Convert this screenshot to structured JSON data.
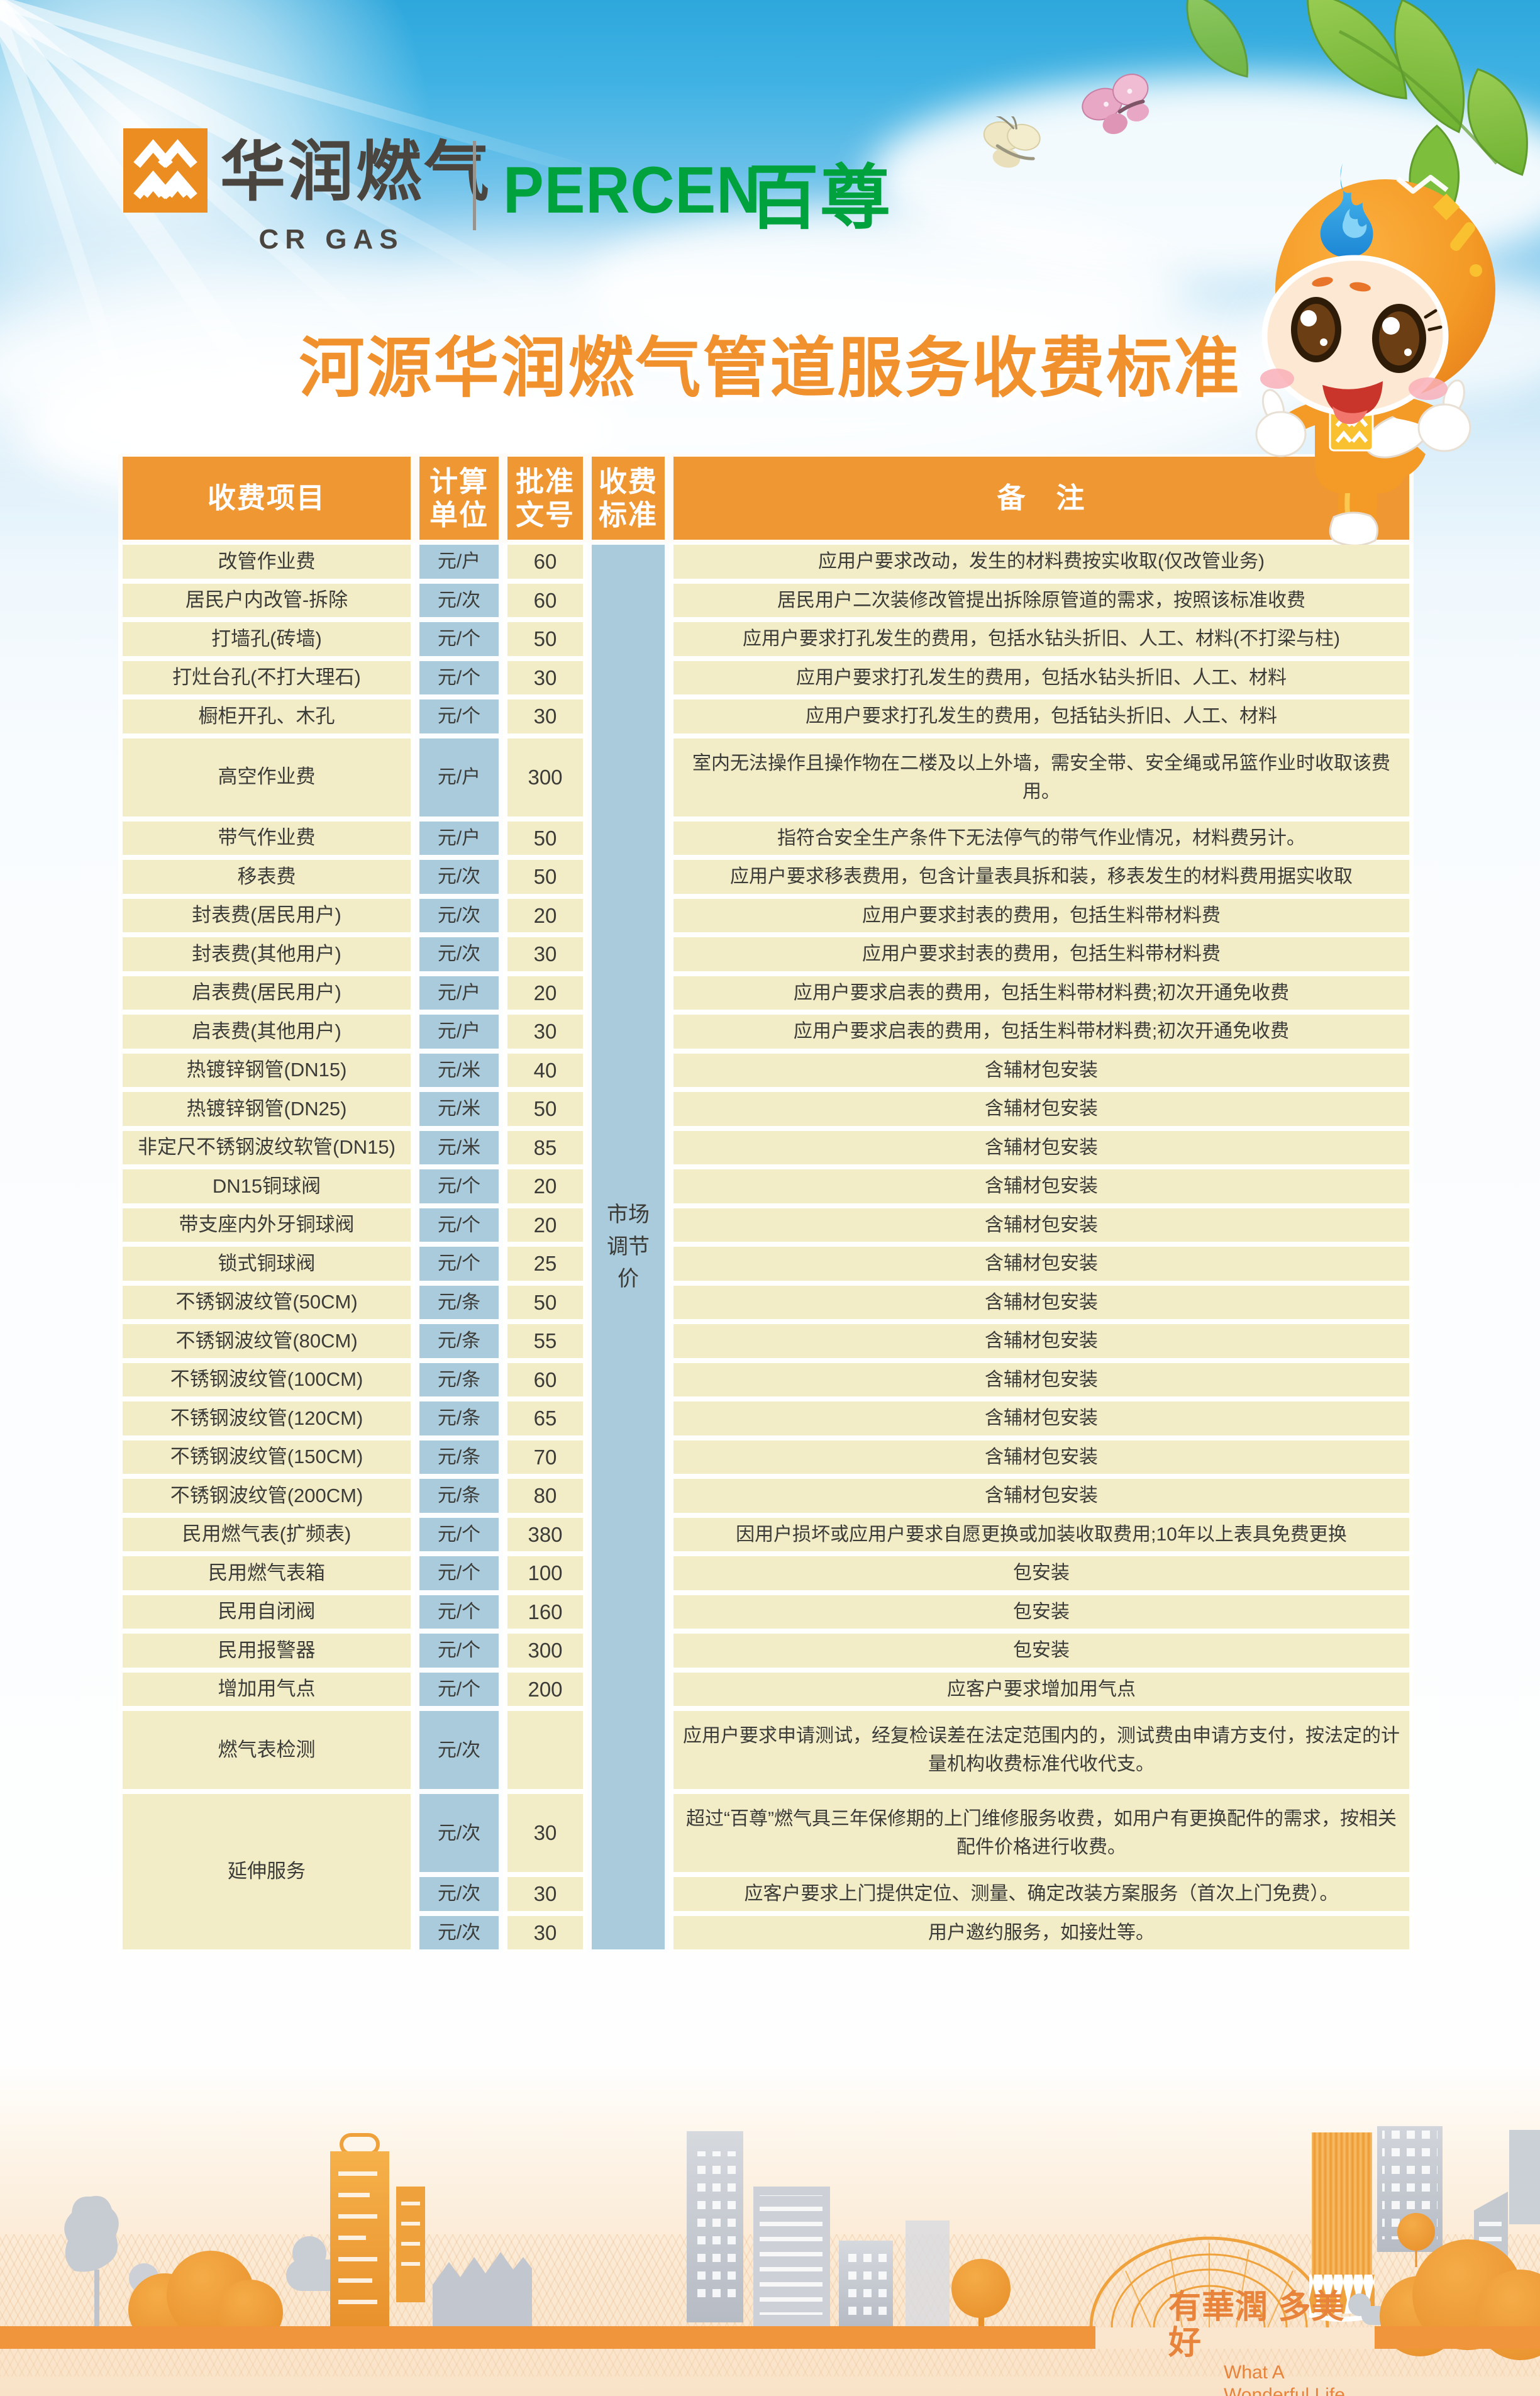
{
  "brand": {
    "cr_name_cn": "华润燃气",
    "cr_name_en": "CR GAS",
    "partner_name_en": "PERCEN",
    "partner_name_cn": "百尊"
  },
  "title": "河源华润燃气管道服务收费标准",
  "table": {
    "headers": {
      "item": "收费项目",
      "unit": "计算\n单位",
      "doc": "批准\n文号",
      "standard": "收费\n标准",
      "remark": "备　注"
    },
    "standard_value": "市场调节价",
    "rows": [
      {
        "item": "改管作业费",
        "unit": "元/户",
        "doc": "60",
        "remark": "应用户要求改动，发生的材料费按实收取(仅改管业务)"
      },
      {
        "item": "居民户内改管-拆除",
        "unit": "元/次",
        "doc": "60",
        "remark": "居民用户二次装修改管提出拆除原管道的需求，按照该标准收费"
      },
      {
        "item": "打墙孔(砖墙)",
        "unit": "元/个",
        "doc": "50",
        "remark": "应用户要求打孔发生的费用，包括水钻头折旧、人工、材料(不打梁与柱)"
      },
      {
        "item": "打灶台孔(不打大理石)",
        "unit": "元/个",
        "doc": "30",
        "remark": "应用户要求打孔发生的费用，包括水钻头折旧、人工、材料"
      },
      {
        "item": "橱柜开孔、木孔",
        "unit": "元/个",
        "doc": "30",
        "remark": "应用户要求打孔发生的费用，包括钻头折旧、人工、材料"
      },
      {
        "item": "高空作业费",
        "unit": "元/户",
        "doc": "300",
        "remark": "室内无法操作且操作物在二楼及以上外墙，需安全带、安全绳或吊篮作业时收取该费用。",
        "h": 132
      },
      {
        "item": "带气作业费",
        "unit": "元/户",
        "doc": "50",
        "remark": "指符合安全生产条件下无法停气的带气作业情况，材料费另计。"
      },
      {
        "item": "移表费",
        "unit": "元/次",
        "doc": "50",
        "remark": "应用户要求移表费用，包含计量表具拆和装，移表发生的材料费用据实收取"
      },
      {
        "item": "封表费(居民用户)",
        "unit": "元/次",
        "doc": "20",
        "remark": "应用户要求封表的费用，包括生料带材料费"
      },
      {
        "item": "封表费(其他用户)",
        "unit": "元/次",
        "doc": "30",
        "remark": "应用户要求封表的费用，包括生料带材料费"
      },
      {
        "item": "启表费(居民用户)",
        "unit": "元/户",
        "doc": "20",
        "remark": "应用户要求启表的费用，包括生料带材料费;初次开通免收费"
      },
      {
        "item": "启表费(其他用户)",
        "unit": "元/户",
        "doc": "30",
        "remark": "应用户要求启表的费用，包括生料带材料费;初次开通免收费"
      },
      {
        "item": "热镀锌钢管(DN15)",
        "unit": "元/米",
        "doc": "40",
        "remark": "含辅材包安装"
      },
      {
        "item": "热镀锌钢管(DN25)",
        "unit": "元/米",
        "doc": "50",
        "remark": "含辅材包安装"
      },
      {
        "item": "非定尺不锈钢波纹软管(DN15)",
        "unit": "元/米",
        "doc": "85",
        "remark": "含辅材包安装"
      },
      {
        "item": "DN15铜球阀",
        "unit": "元/个",
        "doc": "20",
        "remark": "含辅材包安装"
      },
      {
        "item": "带支座内外牙铜球阀",
        "unit": "元/个",
        "doc": "20",
        "remark": "含辅材包安装"
      },
      {
        "item": "锁式铜球阀",
        "unit": "元/个",
        "doc": "25",
        "remark": "含辅材包安装"
      },
      {
        "item": "不锈钢波纹管(50CM)",
        "unit": "元/条",
        "doc": "50",
        "remark": "含辅材包安装"
      },
      {
        "item": "不锈钢波纹管(80CM)",
        "unit": "元/条",
        "doc": "55",
        "remark": "含辅材包安装"
      },
      {
        "item": "不锈钢波纹管(100CM)",
        "unit": "元/条",
        "doc": "60",
        "remark": "含辅材包安装"
      },
      {
        "item": "不锈钢波纹管(120CM)",
        "unit": "元/条",
        "doc": "65",
        "remark": "含辅材包安装"
      },
      {
        "item": "不锈钢波纹管(150CM)",
        "unit": "元/条",
        "doc": "70",
        "remark": "含辅材包安装"
      },
      {
        "item": "不锈钢波纹管(200CM)",
        "unit": "元/条",
        "doc": "80",
        "remark": "含辅材包安装"
      },
      {
        "item": "民用燃气表(扩频表)",
        "unit": "元/个",
        "doc": "380",
        "remark": "因用户损坏或应用户要求自愿更换或加装收取费用;10年以上表具免费更换"
      },
      {
        "item": "民用燃气表箱",
        "unit": "元/个",
        "doc": "100",
        "remark": "包安装"
      },
      {
        "item": "民用自闭阀",
        "unit": "元/个",
        "doc": "160",
        "remark": "包安装"
      },
      {
        "item": "民用报警器",
        "unit": "元/个",
        "doc": "300",
        "remark": "包安装"
      },
      {
        "item": "增加用气点",
        "unit": "元/个",
        "doc": "200",
        "remark": "应客户要求增加用气点"
      },
      {
        "item": "燃气表检测",
        "unit": "元/次",
        "doc": "",
        "remark": "应用户要求申请测试，经复检误差在法定范围内的，测试费由申请方支付，按法定的计量机构收费标准代收代支。",
        "h": 132
      },
      {
        "item": "延伸服务",
        "item_span": 3,
        "unit": "元/次",
        "doc": "30",
        "remark": "超过“百尊”燃气具三年保修期的上门维修服务收费，如用户有更换配件的需求，按相关配件价格进行收费。",
        "h": 132
      },
      {
        "unit": "元/次",
        "doc": "30",
        "remark": "应客户要求上门提供定位、测量、确定改装方案服务（首次上门免费）。"
      },
      {
        "unit": "元/次",
        "doc": "30",
        "remark": "用户邀约服务，如接灶等。"
      }
    ]
  },
  "footer": {
    "slogan_cn": "有華潤 多美好",
    "slogan_en_line1": "What A",
    "slogan_en_line2": "Wonderful Life"
  },
  "decor": {
    "mascot": "gas-mascot-thumbs-up",
    "sun": "sun-glow",
    "leaves": "green-leaves",
    "butterflies": [
      "yellow-butterfly",
      "pink-butterfly"
    ],
    "cityscape": "city-skyline"
  },
  "colors": {
    "header_orange": "#EF9733",
    "cell_cream": "#F2ECC7",
    "cell_blue": "#AACBDB",
    "title_orange": "#F0912D",
    "brand_green": "#00A23D",
    "logo_orange": "#EC8D22",
    "ground_orange": "#F0953C"
  }
}
